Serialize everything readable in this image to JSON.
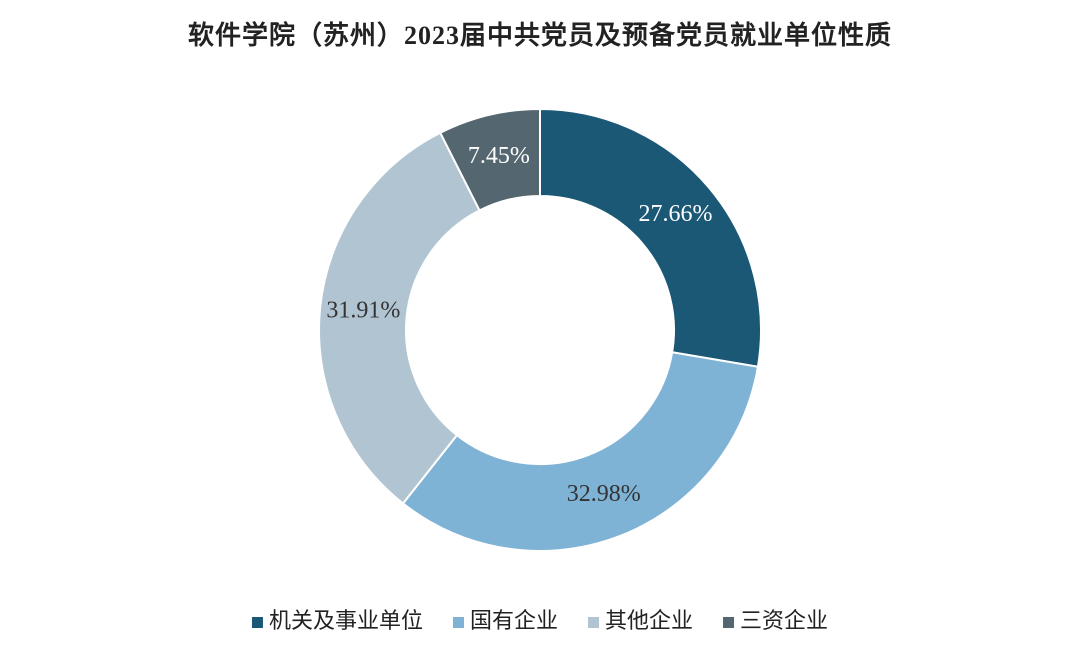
{
  "chart_data": {
    "type": "donut",
    "title": "软件学院（苏州）2023届中共党员及预备党员就业单位性质",
    "categories": [
      "机关及事业单位",
      "国有企业",
      "其他企业",
      "三资企业"
    ],
    "values": [
      27.66,
      32.98,
      31.91,
      7.45
    ],
    "value_labels": [
      "27.66%",
      "32.98%",
      "31.91%",
      "7.45%"
    ],
    "colors": [
      "#1b5876",
      "#7fb3d6",
      "#b0c4d2",
      "#546770"
    ],
    "legend": "bottom"
  }
}
